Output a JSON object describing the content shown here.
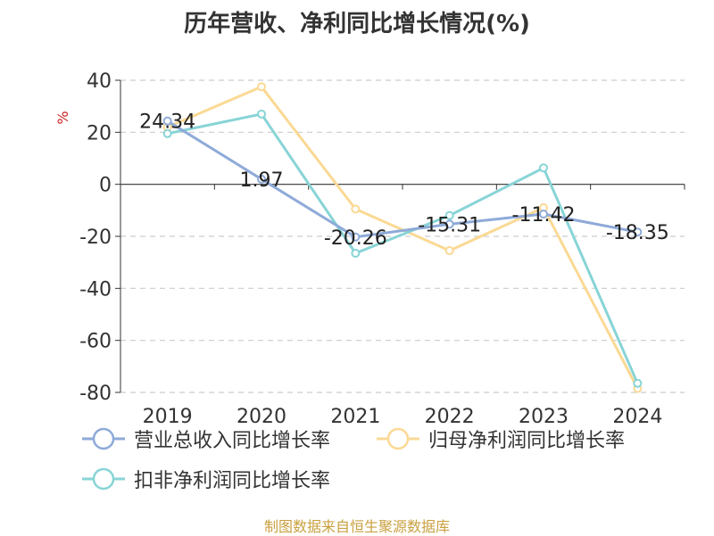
{
  "chart_data": {
    "type": "line",
    "title": "历年营收、净利同比增长情况(%)",
    "ylabel": "%",
    "xlabel": "",
    "categories": [
      "2019",
      "2020",
      "2021",
      "2022",
      "2023",
      "2024"
    ],
    "ylim": [
      -80,
      40
    ],
    "yticks": [
      40,
      20,
      0,
      -20,
      -40,
      -60,
      -80
    ],
    "grid": true,
    "legend_position": "bottom",
    "series": [
      {
        "name": "营业总收入同比增长率",
        "color": "#8eaad8",
        "values": [
          24.34,
          1.97,
          -20.26,
          -15.31,
          -11.42,
          -18.35
        ],
        "labels": [
          "24.34",
          "1.97",
          "-20.26",
          "-15.31",
          "-11.42",
          "-18.35"
        ]
      },
      {
        "name": "归母净利润同比增长率",
        "color": "#fbd994",
        "values": [
          22,
          37.5,
          -9.5,
          -25.5,
          -9,
          -78.5
        ]
      },
      {
        "name": "扣非净利润同比增长率",
        "color": "#88d4d6",
        "values": [
          19.5,
          27,
          -26.5,
          -12,
          6.3,
          -76.5
        ]
      }
    ]
  },
  "footer": {
    "source": "制图数据来自恒生聚源数据库"
  }
}
